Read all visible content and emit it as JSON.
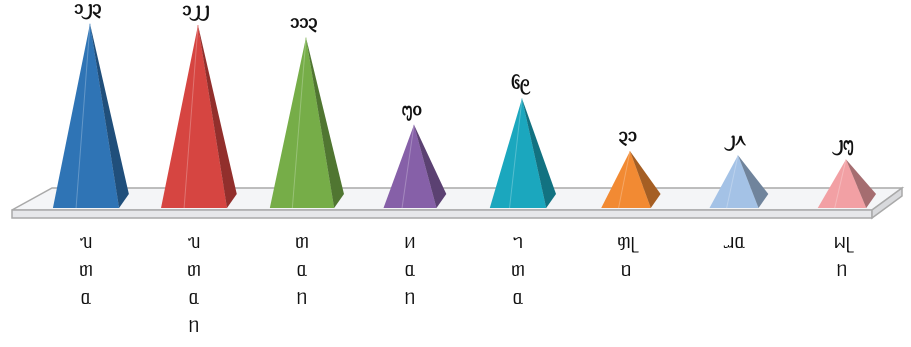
{
  "chart_data": {
    "type": "bar",
    "shape": "pyramid-3d",
    "title": "",
    "xlabel": "",
    "ylabel": "",
    "ylim": [
      0,
      130
    ],
    "grid": false,
    "legend": "none",
    "categories": [
      {
        "label": "ᥔᥖᥲ",
        "label_chars": [
          "ᥔ",
          "ᥖ",
          "ᥲ"
        ],
        "value_label": "᧑᧒᧓",
        "color": "#2f74b5"
      },
      {
        "label": "ᥔᥖᥲᥒ",
        "label_chars": [
          "ᥔ",
          "ᥖ",
          "ᥲ",
          "ᥒ"
        ],
        "value_label": "᧑᧒᧒",
        "color": "#d64541"
      },
      {
        "label": "ᥖᥲᥒ",
        "label_chars": [
          "ᥖ",
          "ᥲ",
          "ᥒ"
        ],
        "value_label": "᧑᧑᧓",
        "color": "#76ad48"
      },
      {
        "label": "ᥢᥲᥒ",
        "label_chars": [
          "ᥢ",
          "ᥲ",
          "ᥒ"
        ],
        "value_label": "᧕᧐",
        "color": "#8660a8"
      },
      {
        "label": "ᥐᥖᥲ",
        "label_chars": [
          "ᥐ",
          "ᥖ",
          "ᥲ"
        ],
        "value_label": "᧖᧙",
        "color": "#1ba7be"
      },
      {
        "label": "ᥞᥨᥝ",
        "label_chars": [
          "ᥞᥨ",
          "ᥝ"
        ],
        "value_label": "᧓᧑",
        "color": "#f28a33"
      },
      {
        "label": "ᥘᥲ",
        "label_chars": [
          "ᥘᥲ"
        ],
        "value_label": "᧒᧘",
        "color": "#a4c2e6"
      },
      {
        "label": "ᥕᥨᥒ",
        "label_chars": [
          "ᥕᥨ",
          "ᥒ"
        ],
        "value_label": "᧒᧕",
        "color": "#f2a0a4"
      }
    ],
    "values": [
      123,
      122,
      113,
      50,
      69,
      31,
      28,
      25
    ]
  }
}
